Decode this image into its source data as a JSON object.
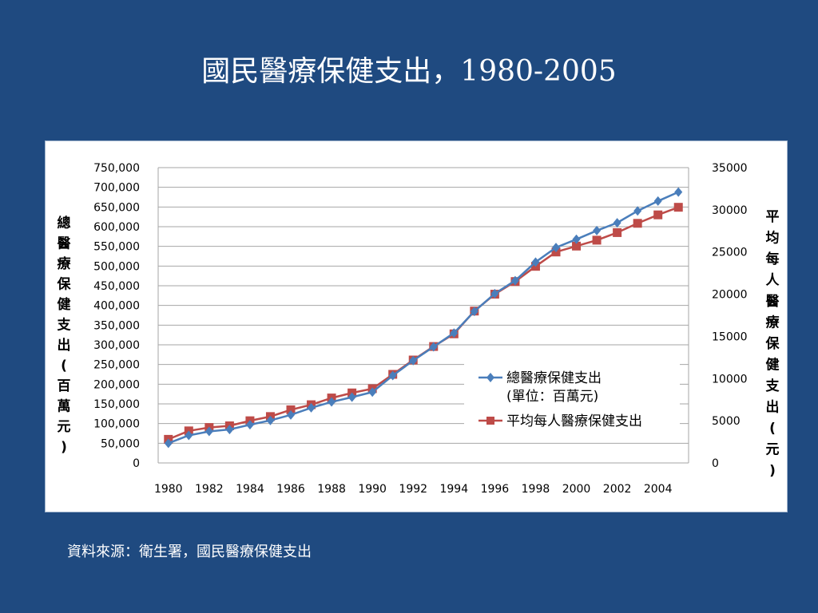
{
  "slide": {
    "title": "國民醫療保健支出，1980-2005",
    "source_note": "資料來源：衛生署，國民醫療保健支出"
  },
  "colors": {
    "background": "#1f4a80",
    "series_total": "#4a7ebb",
    "series_per_capita": "#be4b48",
    "gridline": "#a6a6a6"
  },
  "chart_data": {
    "type": "line",
    "x": [
      1980,
      1981,
      1982,
      1983,
      1984,
      1985,
      1986,
      1987,
      1988,
      1989,
      1990,
      1991,
      1992,
      1993,
      1994,
      1995,
      1996,
      1997,
      1998,
      1999,
      2000,
      2001,
      2002,
      2003,
      2004,
      2005
    ],
    "x_tick_labels": [
      "1980",
      "1982",
      "1984",
      "1986",
      "1988",
      "1990",
      "1992",
      "1994",
      "1996",
      "1998",
      "2000",
      "2002",
      "2004"
    ],
    "y_left": {
      "label": "總醫療保健支出(百萬元)",
      "range": [
        0,
        750000
      ],
      "tick_labels": [
        "0",
        "50,000",
        "100,000",
        "150,000",
        "200,000",
        "250,000",
        "300,000",
        "350,000",
        "400,000",
        "450,000",
        "500,000",
        "550,000",
        "600,000",
        "650,000",
        "700,000",
        "750,000"
      ]
    },
    "y_right": {
      "label": "平均每人醫療保健支出(元)",
      "range": [
        0,
        35000
      ],
      "tick_labels": [
        "0",
        "5000",
        "10000",
        "15000",
        "20000",
        "25000",
        "30000",
        "35000"
      ]
    },
    "grid": true,
    "legend_position": "bottom-right",
    "series": [
      {
        "name": "總醫療保健支出",
        "name_line2": "(單位：百萬元)",
        "axis": "left",
        "marker": "diamond",
        "values": [
          50000,
          70000,
          80000,
          85000,
          97000,
          108000,
          122000,
          140000,
          155000,
          167000,
          180000,
          222000,
          260000,
          295000,
          330000,
          385000,
          430000,
          463000,
          510000,
          547000,
          568000,
          590000,
          610000,
          640000,
          665000,
          688000
        ]
      },
      {
        "name": "平均每人醫療保健支出",
        "axis": "right",
        "marker": "square",
        "values": [
          2800,
          3800,
          4200,
          4400,
          5000,
          5500,
          6300,
          6900,
          7700,
          8300,
          8800,
          10500,
          12200,
          13800,
          15300,
          18000,
          20000,
          21500,
          23300,
          25000,
          25700,
          26400,
          27300,
          28400,
          29400,
          30300
        ]
      }
    ]
  }
}
